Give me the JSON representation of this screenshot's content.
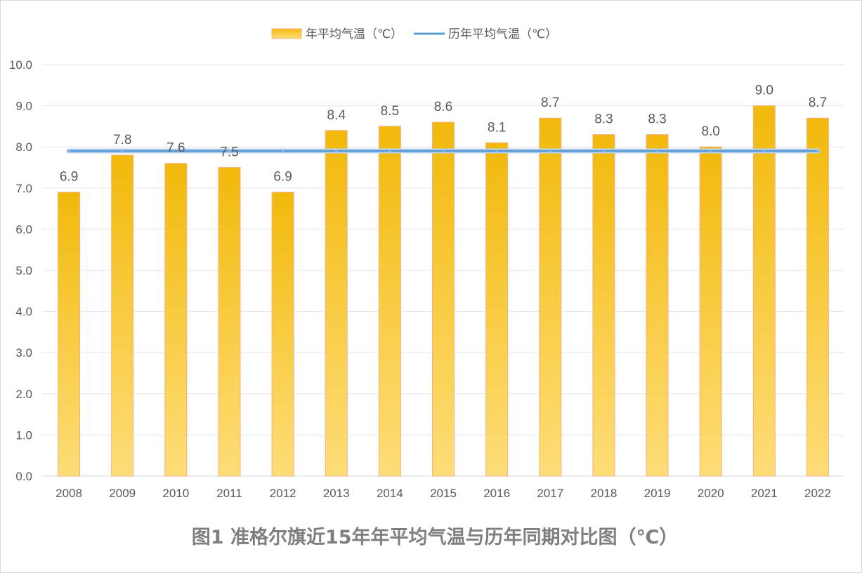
{
  "chart_data": {
    "type": "bar",
    "title": "图1  准格尔旗近15年年平均气温与历年同期对比图（℃）",
    "categories": [
      "2008",
      "2009",
      "2010",
      "2011",
      "2012",
      "2013",
      "2014",
      "2015",
      "2016",
      "2017",
      "2018",
      "2019",
      "2020",
      "2021",
      "2022"
    ],
    "series": [
      {
        "name": "年平均气温（℃）",
        "type": "bar",
        "color": "#f2b90b",
        "values": [
          6.9,
          7.8,
          7.6,
          7.5,
          6.9,
          8.4,
          8.5,
          8.6,
          8.1,
          8.7,
          8.3,
          8.3,
          8.0,
          9.0,
          8.7
        ],
        "data_labels": [
          "6.9",
          "7.8",
          "7.6",
          "7.5",
          "6.9",
          "8.4",
          "8.5",
          "8.6",
          "8.1",
          "8.7",
          "8.3",
          "8.3",
          "8.0",
          "9.0",
          "8.7"
        ]
      },
      {
        "name": "历年平均气温（℃）",
        "type": "line",
        "color": "#5b9bd5",
        "values": [
          7.9,
          7.9,
          7.9,
          7.9,
          7.9,
          7.9,
          7.9,
          7.9,
          7.9,
          7.9,
          7.9,
          7.9,
          7.9,
          7.9,
          7.9
        ]
      }
    ],
    "ylim": [
      0,
      10
    ],
    "yticks": [
      "0.0",
      "1.0",
      "2.0",
      "3.0",
      "4.0",
      "5.0",
      "6.0",
      "7.0",
      "8.0",
      "9.0",
      "10.0"
    ],
    "grid": true,
    "legend_position": "top-center"
  }
}
